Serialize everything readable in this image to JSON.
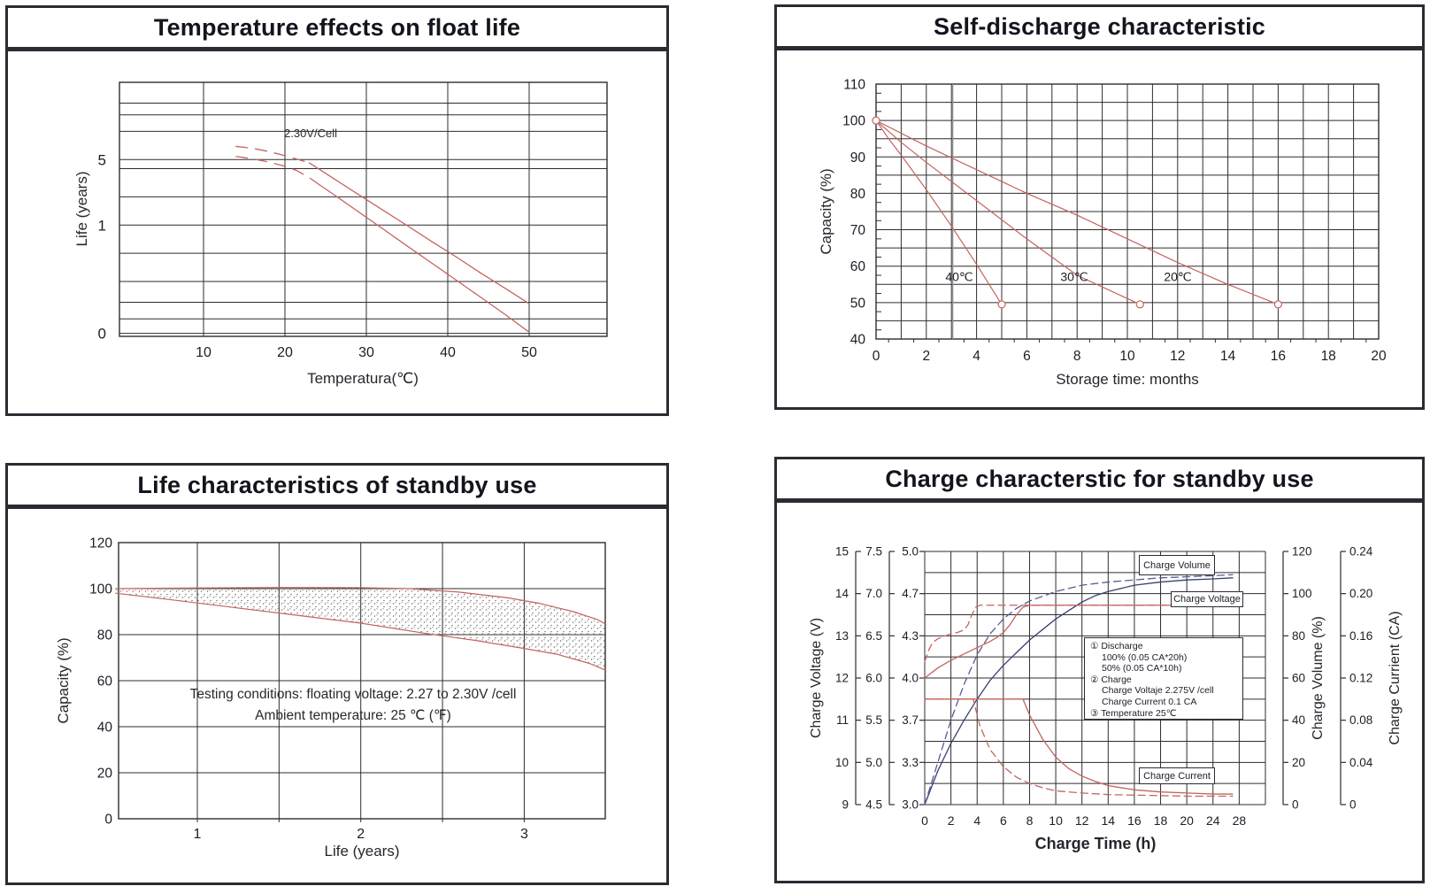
{
  "colors": {
    "red": "#c4645f",
    "navy": "#38406f",
    "navy_dash": "#5a5a94",
    "grid": "#2d2d2d",
    "panel_border": "#2b2b33",
    "text": "#1d1d27",
    "gray_ref": "#929292",
    "stipple": "#6e6e6e"
  },
  "chart_data": [
    {
      "type": "line",
      "title": "Temperature effects on float life",
      "xlabel": "Temperatura(℃)",
      "ylabel": "Life (years)",
      "annotation": "2.30V/Cell",
      "y_scale": "log",
      "x_ticks": [
        10,
        20,
        30,
        40,
        50
      ],
      "y_tick_labels": [
        "5",
        "1",
        "0"
      ],
      "y_tick_values": [
        5,
        1,
        0.07
      ],
      "series": [
        {
          "name": "float-life-band-upper",
          "color": "red",
          "dashed_points": [
            [
              14,
              6.9
            ],
            [
              16,
              6.6
            ],
            [
              18,
              6.1
            ],
            [
              20,
              5.5
            ],
            [
              21.5,
              5.05
            ],
            [
              23,
              4.6
            ]
          ],
          "solid_points": [
            [
              23,
              4.6
            ],
            [
              26,
              3.13
            ],
            [
              29,
              2.13
            ],
            [
              32,
              1.45
            ],
            [
              35,
              0.99
            ],
            [
              38,
              0.67
            ],
            [
              41,
              0.46
            ],
            [
              44,
              0.31
            ],
            [
              47,
              0.213
            ],
            [
              50,
              0.145
            ]
          ]
        },
        {
          "name": "float-life-band-lower",
          "color": "red",
          "dashed_points": [
            [
              14,
              5.4
            ],
            [
              16,
              5.1
            ],
            [
              18,
              4.7
            ],
            [
              20,
              4.25
            ],
            [
              21.5,
              3.8
            ],
            [
              23,
              3.2
            ],
            [
              24,
              2.78
            ]
          ],
          "solid_points": [
            [
              24,
              2.78
            ],
            [
              26,
              2.12
            ],
            [
              29,
              1.39
            ],
            [
              32,
              0.915
            ],
            [
              35,
              0.6
            ],
            [
              38,
              0.395
            ],
            [
              41,
              0.26
            ],
            [
              44,
              0.171
            ],
            [
              47,
              0.112
            ],
            [
              50,
              0.072
            ]
          ]
        }
      ]
    },
    {
      "type": "line",
      "title": "Self-discharge characteristic",
      "xlabel": "Storage time: months",
      "ylabel": "Capacity (%)",
      "xlim": [
        0,
        20
      ],
      "ylim": [
        40,
        110
      ],
      "x_ticks": [
        0,
        2,
        4,
        6,
        8,
        10,
        12,
        14,
        16,
        18,
        20
      ],
      "y_ticks": [
        110,
        100,
        90,
        80,
        70,
        60,
        50,
        40
      ],
      "ref_line_x": 3.05,
      "series": [
        {
          "name": "self-discharge-40c",
          "label": "40℃",
          "label_x": 3.3,
          "label_y": 57,
          "color": "red",
          "points": [
            [
              0,
              100
            ],
            [
              0.5,
              95
            ],
            [
              1,
              90.5
            ],
            [
              2,
              81
            ],
            [
              3,
              71
            ],
            [
              4,
              60.5
            ],
            [
              5,
              49.5
            ]
          ]
        },
        {
          "name": "self-discharge-30c",
          "label": "30℃",
          "label_x": 7.9,
          "label_y": 57,
          "color": "red",
          "points": [
            [
              0,
              100
            ],
            [
              0.5,
              97
            ],
            [
              1,
              94
            ],
            [
              2,
              88.5
            ],
            [
              4,
              78
            ],
            [
              6,
              67.5
            ],
            [
              8,
              57.5
            ],
            [
              10.5,
              49.5
            ]
          ]
        },
        {
          "name": "self-discharge-20c",
          "label": "20℃",
          "label_x": 12.0,
          "label_y": 57,
          "color": "red",
          "points": [
            [
              0,
              100
            ],
            [
              1,
              96.5
            ],
            [
              2,
              93
            ],
            [
              4,
              86.5
            ],
            [
              6,
              80
            ],
            [
              8,
              74
            ],
            [
              10,
              67.5
            ],
            [
              12,
              61
            ],
            [
              14,
              55
            ],
            [
              16,
              49.5
            ]
          ]
        }
      ],
      "markers": [
        [
          0,
          100
        ],
        [
          5,
          49.5
        ],
        [
          10.5,
          49.5
        ],
        [
          16,
          49.5
        ]
      ]
    },
    {
      "type": "band",
      "title": "Life characteristics of standby use",
      "xlabel": "Life (years)",
      "ylabel": "Capacity (%)",
      "xlim": [
        0.5,
        3.5
      ],
      "ylim": [
        0,
        120
      ],
      "x_ticks": [
        1,
        2,
        3
      ],
      "y_ticks": [
        120,
        100,
        80,
        60,
        40,
        20,
        0
      ],
      "note": [
        "Testing conditions: floating voltage: 2.27 to 2.30V /cell",
        "Ambient temperature: 25 ℃ (℉)"
      ],
      "band_upper": [
        [
          0.5,
          100
        ],
        [
          1.0,
          100.3
        ],
        [
          1.5,
          100.5
        ],
        [
          2.0,
          100.4
        ],
        [
          2.3,
          100
        ],
        [
          2.6,
          98.5
        ],
        [
          2.9,
          96
        ],
        [
          3.1,
          93.5
        ],
        [
          3.3,
          90
        ],
        [
          3.45,
          86.5
        ],
        [
          3.5,
          84.5
        ]
      ],
      "band_lower": [
        [
          0.5,
          98
        ],
        [
          0.8,
          95.5
        ],
        [
          1.2,
          92
        ],
        [
          1.6,
          88.5
        ],
        [
          2.0,
          85
        ],
        [
          2.4,
          80.5
        ],
        [
          2.7,
          77.5
        ],
        [
          3.0,
          74
        ],
        [
          3.2,
          71.5
        ],
        [
          3.4,
          67.5
        ],
        [
          3.5,
          64.5
        ]
      ]
    },
    {
      "type": "multi-axis-line",
      "title": "Charge characterstic for standby use",
      "xlabel": "Charge Time (h)",
      "x_ticks": [
        0,
        2,
        4,
        6,
        8,
        10,
        12,
        14,
        16,
        18,
        20,
        24,
        28
      ],
      "axes": {
        "voltage": {
          "title": "Charge Voltage (V)",
          "ticks": [
            "15",
            "14",
            "13",
            "12",
            "11",
            "10",
            "9"
          ]
        },
        "voltage6": {
          "ticks": [
            "7.5",
            "7.0",
            "6.5",
            "6.0",
            "5.5",
            "5.0",
            "4.5"
          ]
        },
        "voltage2": {
          "ticks": [
            "5.0",
            "4.7",
            "4.3",
            "4.0",
            "3.7",
            "3.3",
            "3.0"
          ]
        },
        "volume": {
          "title": "Charge Volume (%)",
          "ticks": [
            "120",
            "100",
            "80",
            "60",
            "40",
            "20",
            "0"
          ]
        },
        "current": {
          "title": "Charge Currient (CA)",
          "ticks": [
            "0.24",
            "0.20",
            "0.16",
            "0.12",
            "0.08",
            "0.04",
            "0"
          ]
        }
      },
      "labels": {
        "volume": "Charge Volume",
        "voltage": "Charge Voltage",
        "current": "Charge Current"
      },
      "note": [
        "① Discharge",
        "100% (0.05 CA*20h)",
        "50% (0.05 CA*10h)",
        "② Charge",
        "Charge Voltaje  2.275V /cell",
        "Charge Current 0.1 CA",
        "③ Temperature 25℃"
      ],
      "series": [
        {
          "name": "charge-volume-100",
          "axis": "volume",
          "color": "navy",
          "style": "solid",
          "points": [
            [
              0,
              0
            ],
            [
              1,
              16
            ],
            [
              2,
              29
            ],
            [
              3,
              40
            ],
            [
              4,
              50
            ],
            [
              5,
              59
            ],
            [
              6,
              66
            ],
            [
              7,
              72
            ],
            [
              8,
              78
            ],
            [
              9,
              83
            ],
            [
              10,
              88
            ],
            [
              11,
              92
            ],
            [
              12,
              96
            ],
            [
              13,
              99
            ],
            [
              14,
              101
            ],
            [
              16,
              104
            ],
            [
              18,
              105.5
            ],
            [
              20,
              106.5
            ],
            [
              24,
              107
            ],
            [
              27,
              107.5
            ]
          ]
        },
        {
          "name": "charge-volume-50",
          "axis": "volume",
          "color": "navy_dash",
          "style": "dashed",
          "points": [
            [
              0,
              0
            ],
            [
              1,
              20
            ],
            [
              2,
              40
            ],
            [
              3,
              57
            ],
            [
              4,
              71
            ],
            [
              5,
              81
            ],
            [
              6,
              88
            ],
            [
              7,
              93
            ],
            [
              8,
              96.5
            ],
            [
              10,
              101
            ],
            [
              12,
              104
            ],
            [
              14,
              105.5
            ],
            [
              16,
              106.5
            ],
            [
              18,
              107.5
            ],
            [
              20,
              108
            ],
            [
              24,
              108.5
            ],
            [
              27,
              109
            ]
          ]
        },
        {
          "name": "charge-voltage-100",
          "axis": "voltage2",
          "color": "red",
          "style": "solid",
          "points": [
            [
              0,
              4.0
            ],
            [
              1,
              4.08
            ],
            [
              2,
              4.14
            ],
            [
              3,
              4.19
            ],
            [
              4,
              4.24
            ],
            [
              5,
              4.29
            ],
            [
              5.5,
              4.32
            ],
            [
              6,
              4.36
            ],
            [
              6.5,
              4.42
            ],
            [
              7,
              4.5
            ],
            [
              7.5,
              4.56
            ],
            [
              8,
              4.575
            ],
            [
              27,
              4.575
            ]
          ]
        },
        {
          "name": "charge-voltage-50",
          "axis": "voltage2",
          "color": "red",
          "style": "dashed",
          "points": [
            [
              0,
              4.13
            ],
            [
              0.3,
              4.22
            ],
            [
              0.6,
              4.28
            ],
            [
              1,
              4.31
            ],
            [
              1.5,
              4.33
            ],
            [
              2,
              4.35
            ],
            [
              2.5,
              4.36
            ],
            [
              3,
              4.38
            ],
            [
              3.3,
              4.42
            ],
            [
              3.6,
              4.5
            ],
            [
              3.9,
              4.56
            ],
            [
              4.2,
              4.575
            ],
            [
              27,
              4.575
            ]
          ]
        },
        {
          "name": "charge-current-100",
          "axis": "current",
          "color": "red",
          "style": "solid",
          "points": [
            [
              0,
              0.1
            ],
            [
              7.5,
              0.1
            ],
            [
              8,
              0.085
            ],
            [
              9,
              0.062
            ],
            [
              10,
              0.045
            ],
            [
              11,
              0.034
            ],
            [
              12,
              0.027
            ],
            [
              13,
              0.022
            ],
            [
              14,
              0.018
            ],
            [
              16,
              0.014
            ],
            [
              18,
              0.012
            ],
            [
              20,
              0.011
            ],
            [
              24,
              0.01
            ],
            [
              27,
              0.01
            ]
          ]
        },
        {
          "name": "charge-current-50",
          "axis": "current",
          "color": "red",
          "style": "dashed",
          "points": [
            [
              0,
              0.1
            ],
            [
              3.7,
              0.1
            ],
            [
              4.2,
              0.075
            ],
            [
              5,
              0.052
            ],
            [
              6,
              0.036
            ],
            [
              7,
              0.026
            ],
            [
              8,
              0.02
            ],
            [
              9,
              0.016
            ],
            [
              10,
              0.013
            ],
            [
              12,
              0.011
            ],
            [
              14,
              0.0095
            ],
            [
              16,
              0.009
            ],
            [
              18,
              0.0085
            ],
            [
              20,
              0.008
            ],
            [
              24,
              0.008
            ],
            [
              27,
              0.008
            ]
          ]
        }
      ]
    }
  ]
}
